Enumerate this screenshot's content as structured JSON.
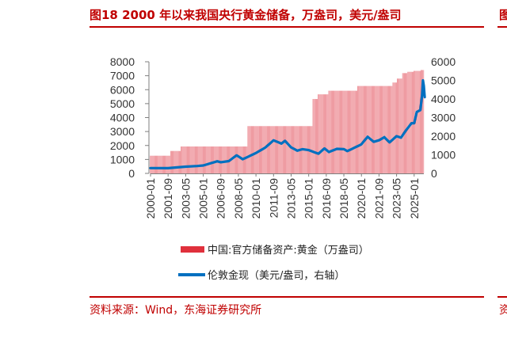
{
  "title": "图18  2000 年以来我国央行黄金储备，万盎司，美元/盎司",
  "title_edge_glyph": "图",
  "source": "资料来源：Wind，东海证券研究所",
  "source_edge_glyph": "资",
  "colors": {
    "accent": "#c00000",
    "bars": "#e8707a",
    "line": "#0070c0"
  },
  "chart_data": {
    "type": "bar+line",
    "x_tick_labels": [
      "2000-01",
      "2001-09",
      "2003-05",
      "2005-01",
      "2006-09",
      "2008-05",
      "2010-01",
      "2011-09",
      "2013-05",
      "2015-01",
      "2016-09",
      "2018-05",
      "2020-01",
      "2021-09",
      "2023-05",
      "2025-01"
    ],
    "x_range": [
      "2000-01",
      "2025-12"
    ],
    "left_axis": {
      "ylim": [
        0,
        8000
      ],
      "ticks": [
        "0",
        "1000",
        "2000",
        "3000",
        "4000",
        "5000",
        "6000",
        "7000",
        "8000"
      ]
    },
    "right_axis": {
      "ylim": [
        0,
        6000
      ],
      "ticks": [
        "0",
        "1000",
        "2000",
        "3000",
        "4000",
        "5000",
        "6000"
      ]
    },
    "grid": false,
    "legend_position": "bottom",
    "series": [
      {
        "name": "中国:官方储备资产:黄金（万盎司）",
        "kind": "bar",
        "axis": "left",
        "steps": [
          {
            "from": "2000-01",
            "value": 1267
          },
          {
            "from": "2001-12",
            "value": 1608
          },
          {
            "from": "2002-12",
            "value": 1929
          },
          {
            "from": "2009-04",
            "value": 3389
          },
          {
            "from": "2015-06",
            "value": 5332
          },
          {
            "from": "2015-12",
            "value": 5666
          },
          {
            "from": "2016-12",
            "value": 5924
          },
          {
            "from": "2019-09",
            "value": 6264
          },
          {
            "from": "2023-01",
            "value": 6512
          },
          {
            "from": "2023-06",
            "value": 6795
          },
          {
            "from": "2023-12",
            "value": 7187
          },
          {
            "from": "2024-06",
            "value": 7280
          },
          {
            "from": "2025-01",
            "value": 7345
          },
          {
            "from": "2025-09",
            "value": 7406
          }
        ]
      },
      {
        "name": "伦敦金现（美元/盎司，右轴）",
        "kind": "line",
        "axis": "right",
        "points": [
          [
            "2000-01",
            285
          ],
          [
            "2001-09",
            280
          ],
          [
            "2002-06",
            320
          ],
          [
            "2003-05",
            360
          ],
          [
            "2004-06",
            395
          ],
          [
            "2005-01",
            425
          ],
          [
            "2006-05",
            650
          ],
          [
            "2006-09",
            600
          ],
          [
            "2007-06",
            660
          ],
          [
            "2008-03",
            970
          ],
          [
            "2008-10",
            760
          ],
          [
            "2009-06",
            940
          ],
          [
            "2010-01",
            1100
          ],
          [
            "2010-12",
            1400
          ],
          [
            "2011-09",
            1780
          ],
          [
            "2012-06",
            1600
          ],
          [
            "2012-10",
            1750
          ],
          [
            "2013-05",
            1400
          ],
          [
            "2013-12",
            1220
          ],
          [
            "2014-06",
            1300
          ],
          [
            "2015-01",
            1250
          ],
          [
            "2015-12",
            1060
          ],
          [
            "2016-07",
            1340
          ],
          [
            "2016-12",
            1150
          ],
          [
            "2017-09",
            1320
          ],
          [
            "2018-05",
            1300
          ],
          [
            "2018-09",
            1200
          ],
          [
            "2019-06",
            1400
          ],
          [
            "2020-01",
            1560
          ],
          [
            "2020-08",
            1970
          ],
          [
            "2021-03",
            1700
          ],
          [
            "2021-09",
            1780
          ],
          [
            "2022-03",
            1950
          ],
          [
            "2022-09",
            1670
          ],
          [
            "2023-05",
            2000
          ],
          [
            "2023-10",
            1920
          ],
          [
            "2024-04",
            2330
          ],
          [
            "2024-10",
            2700
          ],
          [
            "2025-01",
            2700
          ],
          [
            "2025-04",
            3300
          ],
          [
            "2025-08",
            3400
          ],
          [
            "2025-10",
            4200
          ],
          [
            "2025-11",
            5000
          ],
          [
            "2025-12",
            4700
          ],
          [
            "2026-01",
            4100
          ]
        ]
      }
    ]
  }
}
